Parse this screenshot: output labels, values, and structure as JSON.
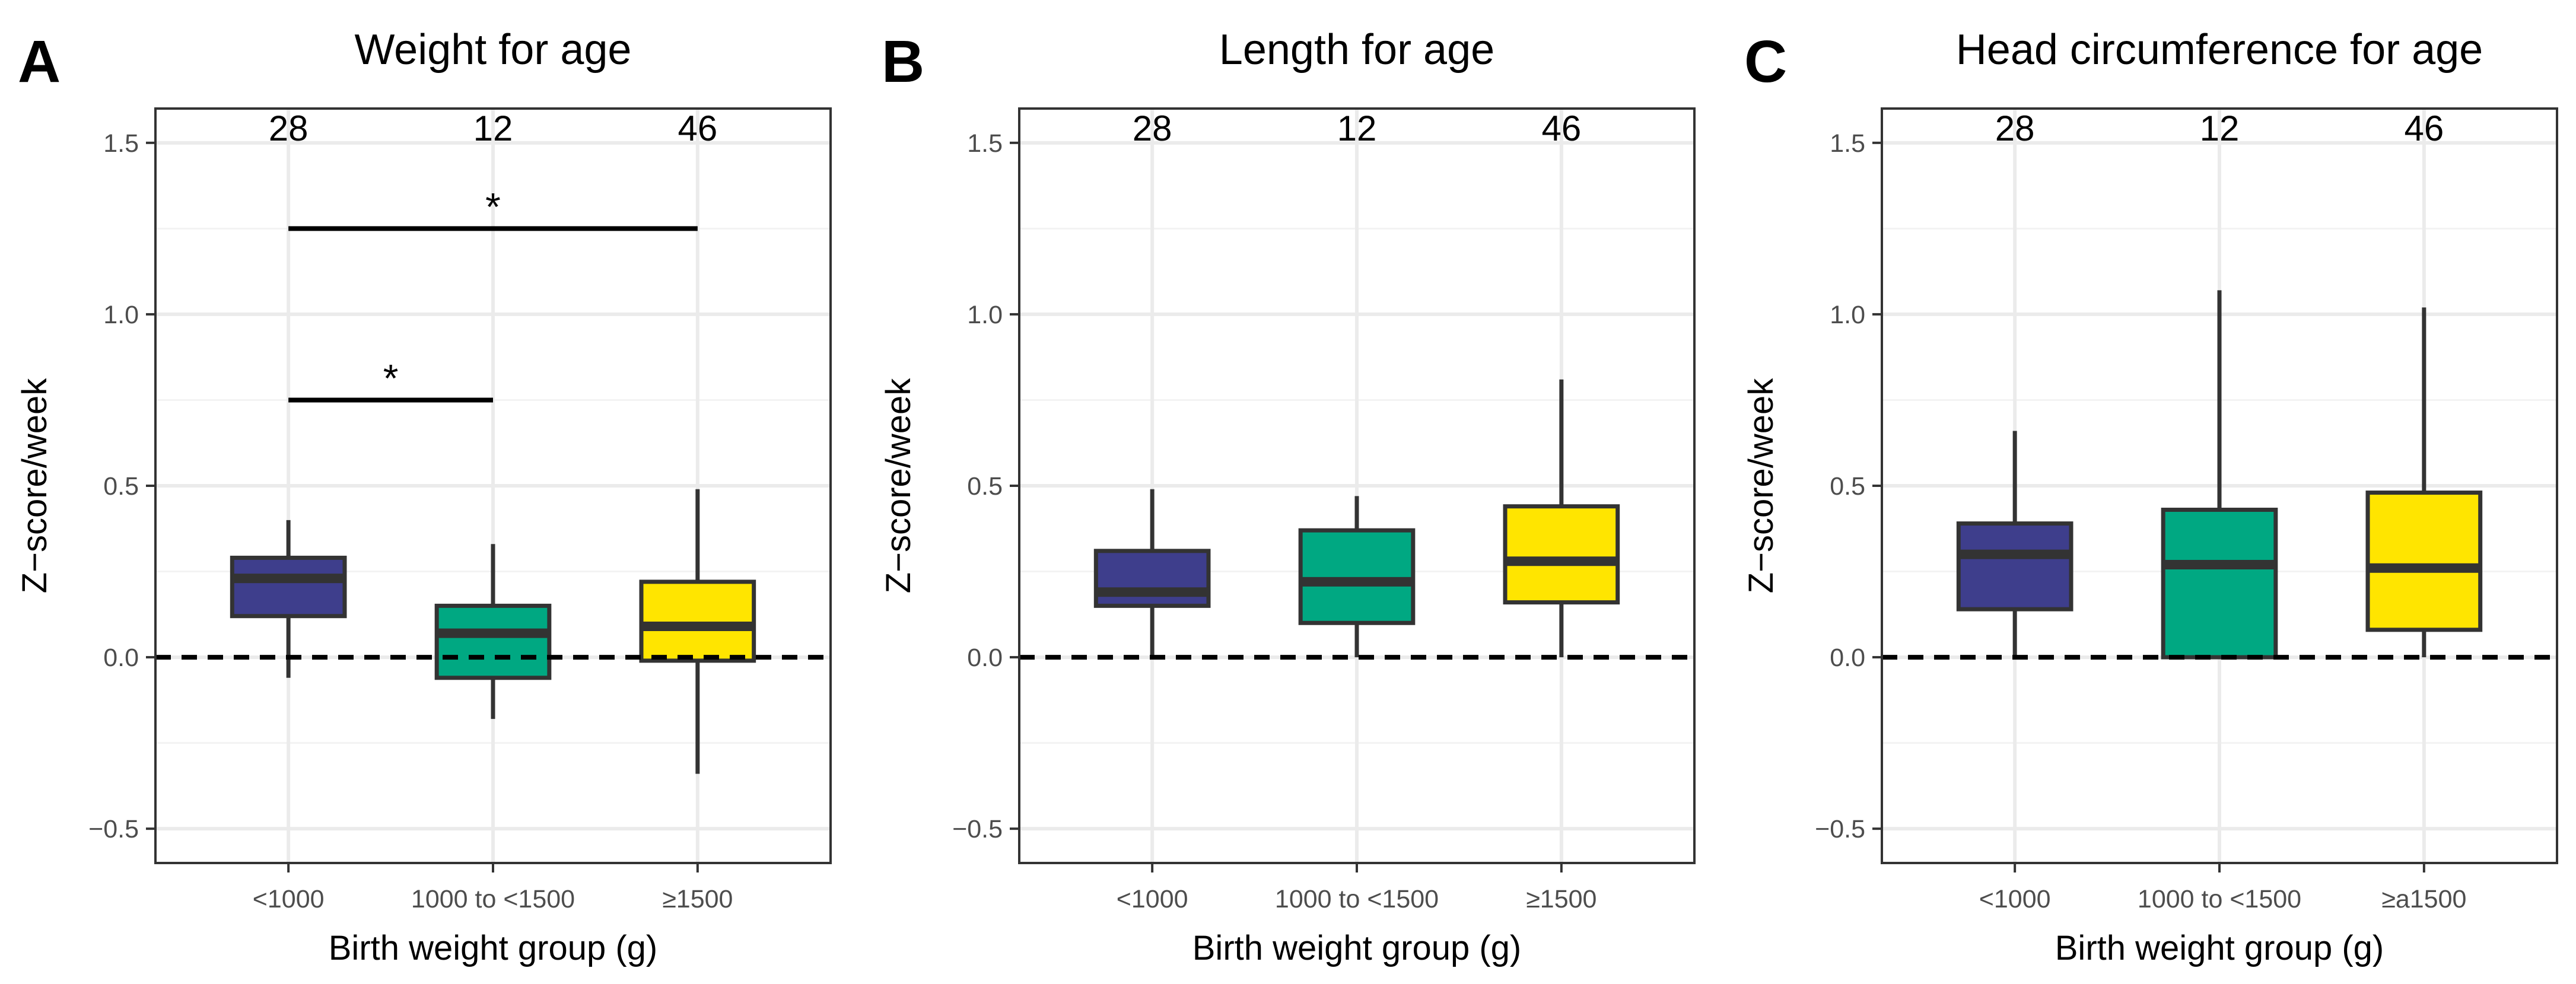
{
  "chart_data": [
    {
      "type": "box",
      "panel_letter": "A",
      "title": "Weight for age",
      "xlabel": "Birth weight group (g)",
      "ylabel": "Z−score/week",
      "ylim": [
        -0.6,
        1.6
      ],
      "yticks": [
        -0.5,
        0.0,
        0.5,
        1.0,
        1.5
      ],
      "ytick_labels": [
        "−0.5",
        "0.0",
        "0.5",
        "1.0",
        "1.5"
      ],
      "reference_line": 0.0,
      "categories": [
        "<1000",
        "1000 to <1500",
        "≥1500"
      ],
      "counts": [
        "28",
        "12",
        "46"
      ],
      "boxes": [
        {
          "lower_whisker": -0.06,
          "q1": 0.12,
          "median": 0.23,
          "q3": 0.29,
          "upper_whisker": 0.4,
          "color": "#3e3e8c"
        },
        {
          "lower_whisker": -0.18,
          "q1": -0.06,
          "median": 0.07,
          "q3": 0.15,
          "upper_whisker": 0.33,
          "color": "#00a882"
        },
        {
          "lower_whisker": -0.34,
          "q1": -0.01,
          "median": 0.09,
          "q3": 0.22,
          "upper_whisker": 0.49,
          "color": "#ffe500"
        }
      ],
      "significance": [
        {
          "from": 0,
          "to": 2,
          "y": 1.25,
          "label": "*"
        },
        {
          "from": 0,
          "to": 1,
          "y": 0.75,
          "label": "*"
        }
      ]
    },
    {
      "type": "box",
      "panel_letter": "B",
      "title": "Length for age",
      "xlabel": "Birth weight group (g)",
      "ylabel": "Z−score/week",
      "ylim": [
        -0.6,
        1.6
      ],
      "yticks": [
        -0.5,
        0.0,
        0.5,
        1.0,
        1.5
      ],
      "ytick_labels": [
        "−0.5",
        "0.0",
        "0.5",
        "1.0",
        "1.5"
      ],
      "reference_line": 0.0,
      "categories": [
        "<1000",
        "1000 to <1500",
        "≥1500"
      ],
      "counts": [
        "28",
        "12",
        "46"
      ],
      "boxes": [
        {
          "lower_whisker": 0.0,
          "q1": 0.15,
          "median": 0.19,
          "q3": 0.31,
          "upper_whisker": 0.49,
          "color": "#3e3e8c"
        },
        {
          "lower_whisker": 0.0,
          "q1": 0.1,
          "median": 0.22,
          "q3": 0.37,
          "upper_whisker": 0.47,
          "color": "#00a882"
        },
        {
          "lower_whisker": 0.0,
          "q1": 0.16,
          "median": 0.28,
          "q3": 0.44,
          "upper_whisker": 0.81,
          "color": "#ffe500"
        }
      ],
      "significance": []
    },
    {
      "type": "box",
      "panel_letter": "C",
      "title": "Head circumference for age",
      "xlabel": "Birth weight group (g)",
      "ylabel": "Z−score/week",
      "ylim": [
        -0.6,
        1.6
      ],
      "yticks": [
        -0.5,
        0.0,
        0.5,
        1.0,
        1.5
      ],
      "ytick_labels": [
        "−0.5",
        "0.0",
        "0.5",
        "1.0",
        "1.5"
      ],
      "reference_line": 0.0,
      "categories": [
        "<1000",
        "1000 to <1500",
        "≥a1500"
      ],
      "counts": [
        "28",
        "12",
        "46"
      ],
      "boxes": [
        {
          "lower_whisker": 0.0,
          "q1": 0.14,
          "median": 0.3,
          "q3": 0.39,
          "upper_whisker": 0.66,
          "color": "#3e3e8c"
        },
        {
          "lower_whisker": 0.0,
          "q1": 0.0,
          "median": 0.27,
          "q3": 0.43,
          "upper_whisker": 1.07,
          "color": "#00a882"
        },
        {
          "lower_whisker": 0.0,
          "q1": 0.08,
          "median": 0.26,
          "q3": 0.48,
          "upper_whisker": 1.02,
          "color": "#ffe500"
        }
      ],
      "significance": []
    }
  ]
}
